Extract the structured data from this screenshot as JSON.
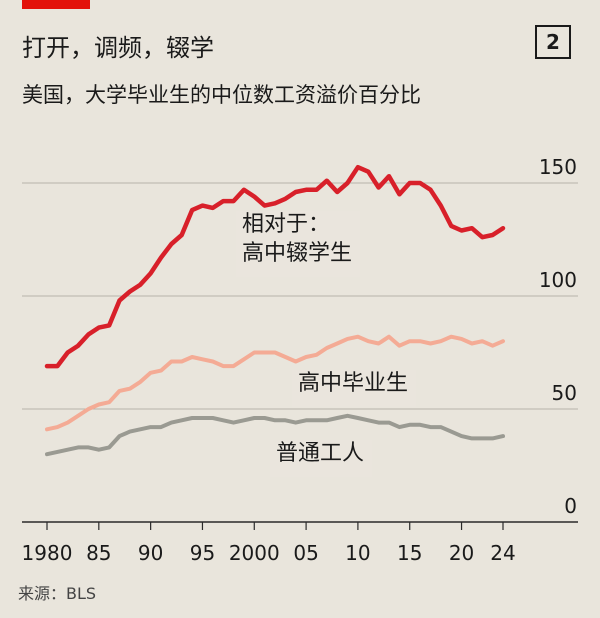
{
  "header": {
    "title": "打开，调频，辍学",
    "figure_number": "2",
    "subtitle": "美国，大学毕业生的中位数工资溢价百分比",
    "source": "来源：BLS"
  },
  "colors": {
    "accent": "#e3120b",
    "dropout_series": "#d8202a",
    "hs_grad_series": "#f4ab95",
    "worker_series": "#9a9a92",
    "background": "#e9e5dc",
    "gridline": "#b7b3aa"
  },
  "chart_data": {
    "type": "line",
    "title": "打开，调频，辍学",
    "subtitle": "美国，大学毕业生的中位数工资溢价百分比",
    "xlabel": "",
    "ylabel": "",
    "xlim": [
      1980,
      2024
    ],
    "ylim": [
      0,
      150
    ],
    "x_ticks": [
      1980,
      1985,
      1990,
      1995,
      2000,
      2005,
      2010,
      2015,
      2020,
      2024
    ],
    "x_tick_labels": [
      "1980",
      "85",
      "90",
      "95",
      "2000",
      "05",
      "10",
      "15",
      "20",
      "24"
    ],
    "y_ticks": [
      0,
      50,
      100,
      150
    ],
    "y_tick_labels": [
      "0",
      "50",
      "100",
      "150"
    ],
    "grid": true,
    "legend": "inline labels",
    "series": [
      {
        "name": "相对于：高中辍学生",
        "label_lines": [
          "相对于：",
          "高中辍学生"
        ],
        "color": "#d8202a",
        "x": [
          1980,
          1981,
          1982,
          1983,
          1984,
          1985,
          1986,
          1987,
          1988,
          1989,
          1990,
          1991,
          1992,
          1993,
          1994,
          1995,
          1996,
          1997,
          1998,
          1999,
          2000,
          2001,
          2002,
          2003,
          2004,
          2005,
          2006,
          2007,
          2008,
          2009,
          2010,
          2011,
          2012,
          2013,
          2014,
          2015,
          2016,
          2017,
          2018,
          2019,
          2020,
          2021,
          2022,
          2023,
          2024
        ],
        "values": [
          69,
          69,
          75,
          78,
          83,
          86,
          87,
          98,
          102,
          105,
          110,
          117,
          123,
          127,
          138,
          140,
          139,
          142,
          142,
          147,
          144,
          140,
          141,
          143,
          146,
          147,
          147,
          151,
          146,
          150,
          157,
          155,
          148,
          153,
          145,
          150,
          150,
          147,
          140,
          131,
          129,
          130,
          126,
          127,
          130
        ]
      },
      {
        "name": "高中毕业生",
        "label_lines": [
          "高中毕业生"
        ],
        "color": "#f4ab95",
        "x": [
          1980,
          1981,
          1982,
          1983,
          1984,
          1985,
          1986,
          1987,
          1988,
          1989,
          1990,
          1991,
          1992,
          1993,
          1994,
          1995,
          1996,
          1997,
          1998,
          1999,
          2000,
          2001,
          2002,
          2003,
          2004,
          2005,
          2006,
          2007,
          2008,
          2009,
          2010,
          2011,
          2012,
          2013,
          2014,
          2015,
          2016,
          2017,
          2018,
          2019,
          2020,
          2021,
          2022,
          2023,
          2024
        ],
        "values": [
          41,
          42,
          44,
          47,
          50,
          52,
          53,
          58,
          59,
          62,
          66,
          67,
          71,
          71,
          73,
          72,
          71,
          69,
          69,
          72,
          75,
          75,
          75,
          73,
          71,
          73,
          74,
          77,
          79,
          81,
          82,
          80,
          79,
          82,
          78,
          80,
          80,
          79,
          80,
          82,
          81,
          79,
          80,
          78,
          80
        ]
      },
      {
        "name": "普通工人",
        "label_lines": [
          "普通工人"
        ],
        "color": "#9a9a92",
        "x": [
          1980,
          1981,
          1982,
          1983,
          1984,
          1985,
          1986,
          1987,
          1988,
          1989,
          1990,
          1991,
          1992,
          1993,
          1994,
          1995,
          1996,
          1997,
          1998,
          1999,
          2000,
          2001,
          2002,
          2003,
          2004,
          2005,
          2006,
          2007,
          2008,
          2009,
          2010,
          2011,
          2012,
          2013,
          2014,
          2015,
          2016,
          2017,
          2018,
          2019,
          2020,
          2021,
          2022,
          2023,
          2024
        ],
        "values": [
          30,
          31,
          32,
          33,
          33,
          32,
          33,
          38,
          40,
          41,
          42,
          42,
          44,
          45,
          46,
          46,
          46,
          45,
          44,
          45,
          46,
          46,
          45,
          45,
          44,
          45,
          45,
          45,
          46,
          47,
          46,
          45,
          44,
          44,
          42,
          43,
          43,
          42,
          42,
          40,
          38,
          37,
          37,
          37,
          38
        ]
      }
    ]
  }
}
